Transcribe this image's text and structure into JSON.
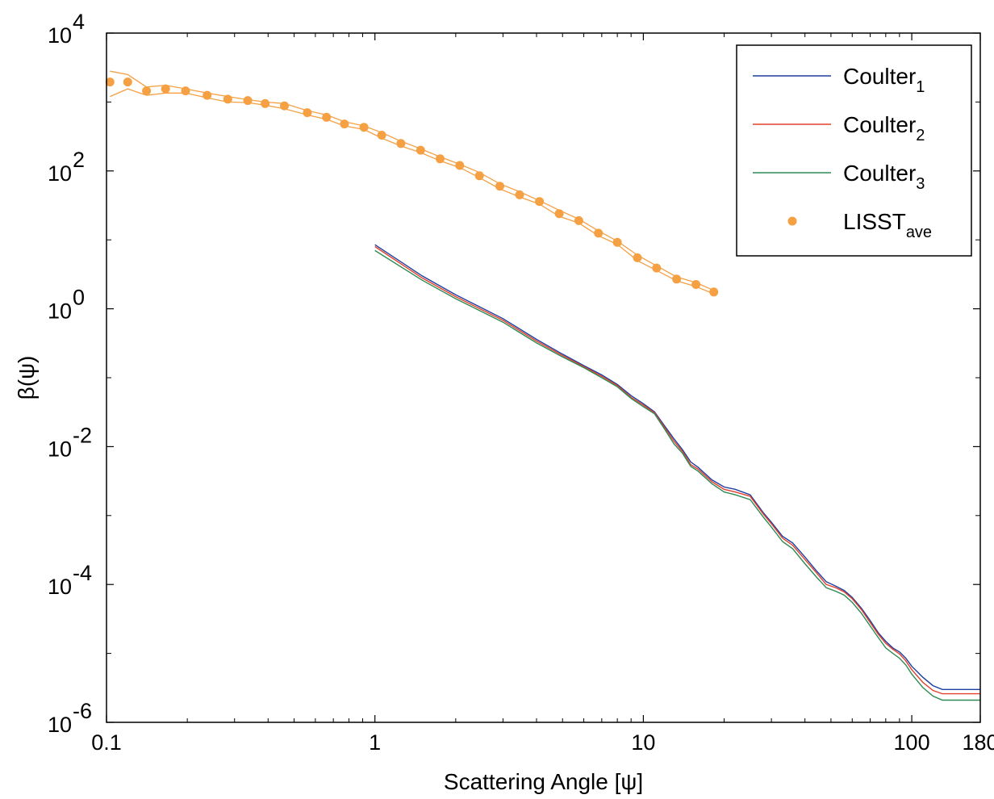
{
  "chart_data": {
    "type": "line",
    "xlabel": "Scattering Angle [ψ]",
    "ylabel": "β(ψ)",
    "x_scale": "log",
    "y_scale": "log",
    "xlim": [
      0.1,
      180
    ],
    "ylim": [
      1e-06,
      10000
    ],
    "x_ticks": [
      {
        "value": 0.1,
        "label": "0.1"
      },
      {
        "value": 1,
        "label": "1"
      },
      {
        "value": 10,
        "label": "10"
      },
      {
        "value": 100,
        "label": "100"
      },
      {
        "value": 180,
        "label": "180"
      }
    ],
    "y_ticks": [
      {
        "value": 1e-06,
        "base": "10",
        "exp": "-6"
      },
      {
        "value": 0.0001,
        "base": "10",
        "exp": "-4"
      },
      {
        "value": 0.01,
        "base": "10",
        "exp": "-2"
      },
      {
        "value": 1,
        "base": "10",
        "exp": "0"
      },
      {
        "value": 100,
        "base": "10",
        "exp": "2"
      },
      {
        "value": 10000,
        "base": "10",
        "exp": "4"
      }
    ],
    "grid": false,
    "legend_position": "top-right",
    "series": [
      {
        "name": "Coulter",
        "sub": "1",
        "color": "#1f3fa0",
        "kind": "line",
        "points": [
          [
            1.0,
            8.5
          ],
          [
            1.5,
            3.0
          ],
          [
            2.0,
            1.6
          ],
          [
            3.0,
            0.72
          ],
          [
            4.0,
            0.36
          ],
          [
            5.0,
            0.22
          ],
          [
            6.0,
            0.15
          ],
          [
            7.0,
            0.11
          ],
          [
            8.0,
            0.08
          ],
          [
            9.0,
            0.055
          ],
          [
            10.0,
            0.042
          ],
          [
            11.0,
            0.032
          ],
          [
            12.0,
            0.02
          ],
          [
            13.0,
            0.013
          ],
          [
            14.0,
            0.009
          ],
          [
            15.0,
            0.006
          ],
          [
            16.0,
            0.005
          ],
          [
            18.0,
            0.0033
          ],
          [
            20.0,
            0.0026
          ],
          [
            22.0,
            0.0024
          ],
          [
            25.0,
            0.002
          ],
          [
            28.0,
            0.0011
          ],
          [
            30.0,
            0.0008
          ],
          [
            33.0,
            0.0005
          ],
          [
            36.0,
            0.0004
          ],
          [
            40.0,
            0.00025
          ],
          [
            44.0,
            0.00016
          ],
          [
            48.0,
            0.00011
          ],
          [
            52.0,
            9.5e-05
          ],
          [
            56.0,
            8.2e-05
          ],
          [
            60.0,
            6.5e-05
          ],
          [
            65.0,
            4.5e-05
          ],
          [
            70.0,
            3e-05
          ],
          [
            75.0,
            2e-05
          ],
          [
            80.0,
            1.5e-05
          ],
          [
            85.0,
            1.2e-05
          ],
          [
            90.0,
            1.05e-05
          ],
          [
            95.0,
            8.5e-06
          ],
          [
            100.0,
            6.5e-06
          ],
          [
            110.0,
            4.5e-06
          ],
          [
            120.0,
            3.4e-06
          ],
          [
            130.0,
            3e-06
          ],
          [
            180.0,
            3e-06
          ]
        ]
      },
      {
        "name": "Coulter",
        "sub": "2",
        "color": "#e2402a",
        "kind": "line",
        "points": [
          [
            1.0,
            8.0
          ],
          [
            1.5,
            2.8
          ],
          [
            2.0,
            1.5
          ],
          [
            3.0,
            0.68
          ],
          [
            4.0,
            0.34
          ],
          [
            5.0,
            0.21
          ],
          [
            6.0,
            0.145
          ],
          [
            7.0,
            0.105
          ],
          [
            8.0,
            0.077
          ],
          [
            9.0,
            0.052
          ],
          [
            10.0,
            0.04
          ],
          [
            11.0,
            0.031
          ],
          [
            12.0,
            0.019
          ],
          [
            13.0,
            0.012
          ],
          [
            14.0,
            0.0085
          ],
          [
            15.0,
            0.0055
          ],
          [
            16.0,
            0.0047
          ],
          [
            18.0,
            0.0031
          ],
          [
            20.0,
            0.0024
          ],
          [
            22.0,
            0.0022
          ],
          [
            25.0,
            0.0019
          ],
          [
            28.0,
            0.00105
          ],
          [
            30.0,
            0.00076
          ],
          [
            33.0,
            0.00047
          ],
          [
            36.0,
            0.00037
          ],
          [
            40.0,
            0.00023
          ],
          [
            44.0,
            0.00015
          ],
          [
            48.0,
            0.0001
          ],
          [
            52.0,
            9e-05
          ],
          [
            56.0,
            7.8e-05
          ],
          [
            60.0,
            6.2e-05
          ],
          [
            65.0,
            4.3e-05
          ],
          [
            70.0,
            2.8e-05
          ],
          [
            75.0,
            1.9e-05
          ],
          [
            80.0,
            1.4e-05
          ],
          [
            85.0,
            1.15e-05
          ],
          [
            90.0,
            9.8e-06
          ],
          [
            95.0,
            7.8e-06
          ],
          [
            100.0,
            5.8e-06
          ],
          [
            110.0,
            3.8e-06
          ],
          [
            120.0,
            2.9e-06
          ],
          [
            130.0,
            2.6e-06
          ],
          [
            180.0,
            2.6e-06
          ]
        ]
      },
      {
        "name": "Coulter",
        "sub": "3",
        "color": "#2e8a55",
        "kind": "line",
        "points": [
          [
            1.0,
            7.0
          ],
          [
            1.5,
            2.6
          ],
          [
            2.0,
            1.4
          ],
          [
            3.0,
            0.64
          ],
          [
            4.0,
            0.32
          ],
          [
            5.0,
            0.2
          ],
          [
            6.0,
            0.14
          ],
          [
            7.0,
            0.1
          ],
          [
            8.0,
            0.074
          ],
          [
            9.0,
            0.05
          ],
          [
            10.0,
            0.038
          ],
          [
            11.0,
            0.03
          ],
          [
            12.0,
            0.018
          ],
          [
            13.0,
            0.011
          ],
          [
            14.0,
            0.008
          ],
          [
            15.0,
            0.0052
          ],
          [
            16.0,
            0.0044
          ],
          [
            18.0,
            0.0029
          ],
          [
            20.0,
            0.0022
          ],
          [
            22.0,
            0.002
          ],
          [
            25.0,
            0.0017
          ],
          [
            28.0,
            0.00095
          ],
          [
            30.0,
            0.00068
          ],
          [
            33.0,
            0.00042
          ],
          [
            36.0,
            0.00033
          ],
          [
            40.0,
            0.0002
          ],
          [
            44.0,
            0.00013
          ],
          [
            48.0,
            9e-05
          ],
          [
            52.0,
            8e-05
          ],
          [
            56.0,
            7e-05
          ],
          [
            60.0,
            5.5e-05
          ],
          [
            65.0,
            3.8e-05
          ],
          [
            70.0,
            2.5e-05
          ],
          [
            75.0,
            1.7e-05
          ],
          [
            80.0,
            1.2e-05
          ],
          [
            85.0,
            1e-05
          ],
          [
            90.0,
            8.5e-06
          ],
          [
            95.0,
            6.8e-06
          ],
          [
            100.0,
            5e-06
          ],
          [
            110.0,
            3.2e-06
          ],
          [
            120.0,
            2.4e-06
          ],
          [
            130.0,
            2.1e-06
          ],
          [
            180.0,
            2.1e-06
          ]
        ]
      },
      {
        "name": "LISST",
        "sub": "ave",
        "color": "#f5a043",
        "kind": "scatter",
        "points": [
          [
            0.103,
            1950
          ],
          [
            0.12,
            1950
          ],
          [
            0.141,
            1450
          ],
          [
            0.166,
            1550
          ],
          [
            0.197,
            1450
          ],
          [
            0.237,
            1250
          ],
          [
            0.283,
            1100
          ],
          [
            0.336,
            1050
          ],
          [
            0.39,
            950
          ],
          [
            0.46,
            880
          ],
          [
            0.56,
            700
          ],
          [
            0.66,
            600
          ],
          [
            0.77,
            480
          ],
          [
            0.91,
            430
          ],
          [
            1.06,
            330
          ],
          [
            1.25,
            250
          ],
          [
            1.48,
            200
          ],
          [
            1.75,
            150
          ],
          [
            2.07,
            120
          ],
          [
            2.45,
            85
          ],
          [
            2.92,
            60
          ],
          [
            3.46,
            45
          ],
          [
            4.1,
            36
          ],
          [
            4.86,
            24
          ],
          [
            5.75,
            19
          ],
          [
            6.8,
            12.5
          ],
          [
            8.0,
            9.2
          ],
          [
            9.5,
            5.5
          ],
          [
            11.2,
            3.9
          ],
          [
            13.3,
            2.7
          ],
          [
            15.7,
            2.25
          ],
          [
            18.3,
            1.75
          ]
        ]
      }
    ],
    "envelope": {
      "color": "#f5a043",
      "upper": [
        [
          0.103,
          2800
        ],
        [
          0.12,
          2500
        ],
        [
          0.141,
          1650
        ],
        [
          0.166,
          1750
        ],
        [
          0.197,
          1550
        ],
        [
          0.237,
          1350
        ],
        [
          0.283,
          1200
        ],
        [
          0.336,
          1080
        ],
        [
          0.39,
          1000
        ],
        [
          0.46,
          950
        ],
        [
          0.56,
          750
        ],
        [
          0.66,
          650
        ],
        [
          0.77,
          520
        ],
        [
          0.91,
          450
        ],
        [
          1.06,
          360
        ],
        [
          1.25,
          270
        ],
        [
          1.48,
          210
        ],
        [
          1.75,
          160
        ],
        [
          2.07,
          125
        ],
        [
          2.45,
          95
        ],
        [
          2.92,
          65
        ],
        [
          3.46,
          50
        ],
        [
          4.1,
          37
        ],
        [
          4.86,
          27
        ],
        [
          5.75,
          20
        ],
        [
          6.8,
          13.5
        ],
        [
          8.0,
          9.6
        ],
        [
          9.5,
          6.0
        ],
        [
          11.2,
          4.2
        ],
        [
          13.3,
          2.9
        ],
        [
          15.7,
          2.4
        ],
        [
          18.3,
          1.85
        ]
      ],
      "lower": [
        [
          0.103,
          1200
        ],
        [
          0.12,
          1550
        ],
        [
          0.141,
          1250
        ],
        [
          0.166,
          1350
        ],
        [
          0.197,
          1350
        ],
        [
          0.237,
          1150
        ],
        [
          0.283,
          1000
        ],
        [
          0.336,
          980
        ],
        [
          0.39,
          900
        ],
        [
          0.46,
          800
        ],
        [
          0.56,
          650
        ],
        [
          0.66,
          560
        ],
        [
          0.77,
          450
        ],
        [
          0.91,
          400
        ],
        [
          1.06,
          300
        ],
        [
          1.25,
          230
        ],
        [
          1.48,
          185
        ],
        [
          1.75,
          140
        ],
        [
          2.07,
          112
        ],
        [
          2.45,
          80
        ],
        [
          2.92,
          55
        ],
        [
          3.46,
          42
        ],
        [
          4.1,
          33
        ],
        [
          4.86,
          22
        ],
        [
          5.75,
          17.5
        ],
        [
          6.8,
          11.5
        ],
        [
          8.0,
          8.6
        ],
        [
          9.5,
          5.0
        ],
        [
          11.2,
          3.6
        ],
        [
          13.3,
          2.55
        ],
        [
          15.7,
          2.1
        ],
        [
          18.3,
          1.65
        ]
      ]
    }
  }
}
